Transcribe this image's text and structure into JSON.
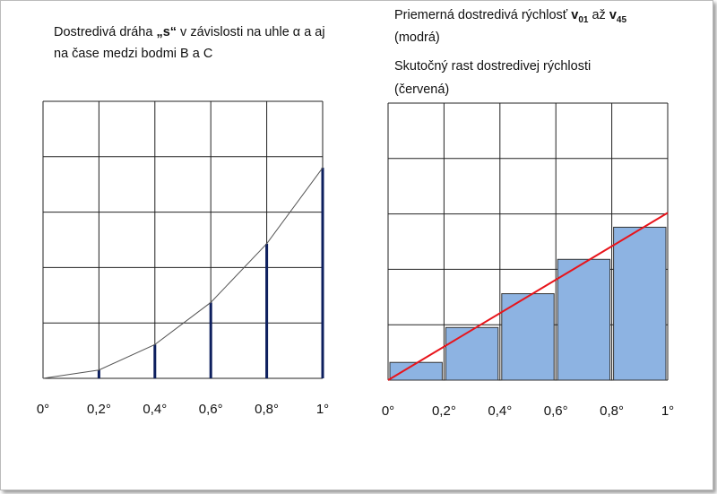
{
  "chart_data": [
    {
      "type": "line",
      "title_parts": [
        "Dostredivá dráha ",
        "„s“",
        " v závislosti na uhle α a aj"
      ],
      "title_line2": "na čase medzi bodmi B a C",
      "x": [
        0,
        0.2,
        0.4,
        0.6,
        0.8,
        1
      ],
      "series": [
        {
          "values": [
            0,
            0.15,
            0.61,
            1.37,
            2.43,
            3.8
          ],
          "color": "#555555",
          "stem_color": "#0d1f5e"
        }
      ],
      "xlim": [
        0,
        1
      ],
      "xticks": [
        {
          "value": 0,
          "label": "0°"
        },
        {
          "value": 0.2,
          "label": "0,2°"
        },
        {
          "value": 0.4,
          "label": "0,4°"
        },
        {
          "value": 0.6,
          "label": "0,6°"
        },
        {
          "value": 0.8,
          "label": "0,8°"
        },
        {
          "value": 1,
          "label": "1°"
        }
      ],
      "ylim": [
        0,
        5
      ],
      "ygrid": [
        0,
        1,
        2,
        3,
        4,
        5
      ],
      "grid": true
    },
    {
      "type": "histogram",
      "title_parts": [
        "Priemerná dostredivá rýchlosť ",
        "v",
        "01",
        " až ",
        "v",
        "45"
      ],
      "title_line2": "(modrá)",
      "subtitle": "Skutočný rast dostredivej rýchlosti",
      "subtitle_line2": "(červená)",
      "bins": [
        0,
        0.2,
        0.4,
        0.6,
        0.8,
        1
      ],
      "counts": [
        0.32,
        0.95,
        1.56,
        2.18,
        2.76
      ],
      "color": "#8db3e2",
      "lines": [
        {
          "x": [
            0,
            1
          ],
          "values": [
            0,
            3.02
          ],
          "color": "#e8141b"
        }
      ],
      "xlim": [
        0,
        1
      ],
      "xticks": [
        {
          "value": 0,
          "label": "0°"
        },
        {
          "value": 0.2,
          "label": "0,2°"
        },
        {
          "value": 0.4,
          "label": "0,4°"
        },
        {
          "value": 0.6,
          "label": "0,6°"
        },
        {
          "value": 0.8,
          "label": "0,8°"
        },
        {
          "value": 1,
          "label": "1°"
        }
      ],
      "ylim": [
        0,
        5
      ],
      "ygrid": [
        0,
        1,
        2,
        3,
        4,
        5
      ],
      "grid": true
    }
  ]
}
